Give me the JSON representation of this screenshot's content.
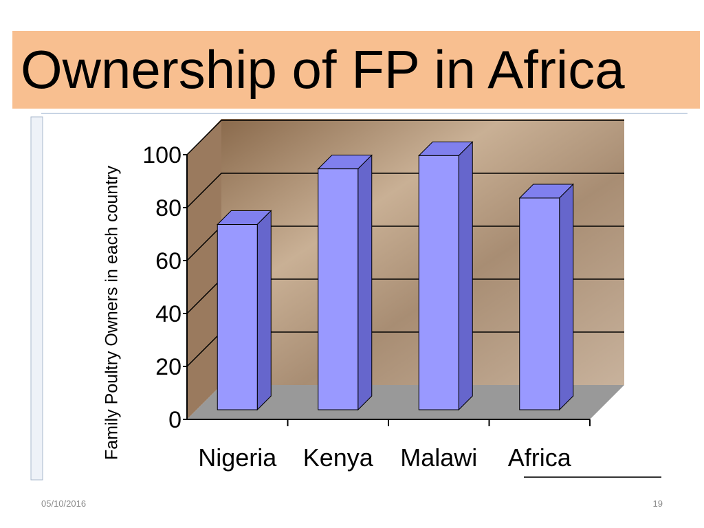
{
  "title": "Ownership of FP in Africa",
  "footer": {
    "date": "05/10/2016",
    "page": "19"
  },
  "chart_data": {
    "type": "bar",
    "y_label": "Family Poultry Owners in each country",
    "categories": [
      "Nigeria",
      "Kenya",
      "Malawi",
      "Africa"
    ],
    "values": [
      70,
      91,
      96,
      80
    ],
    "color": "#9999ff",
    "ylim": [
      0,
      100
    ],
    "yticks": [
      0,
      20,
      40,
      60,
      80,
      100
    ],
    "grid": true
  }
}
